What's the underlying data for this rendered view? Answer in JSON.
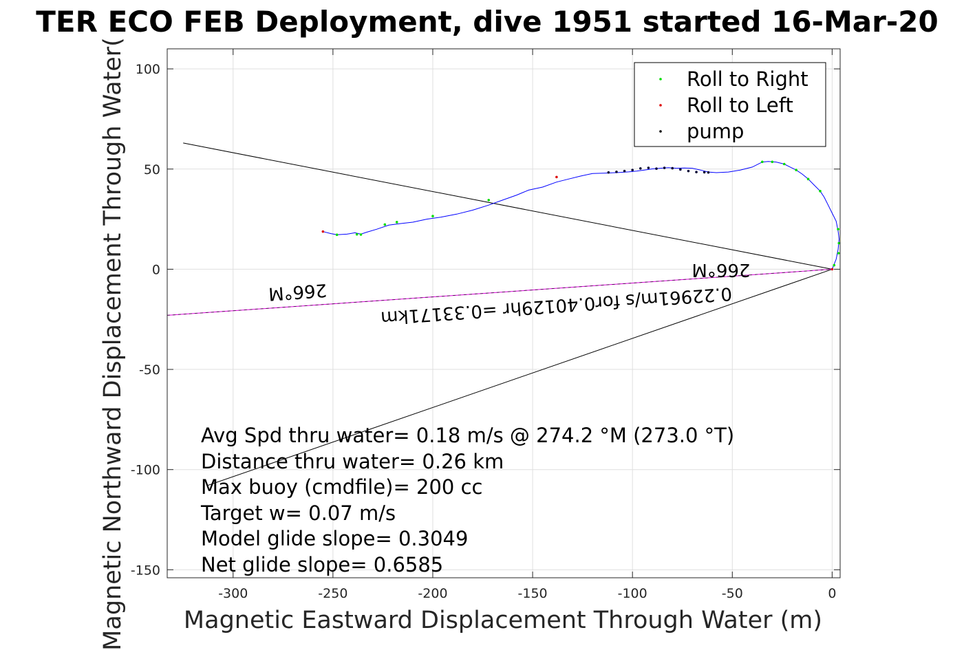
{
  "chart_data": {
    "type": "line",
    "title": "TER ECO FEB Deployment, dive 1951 started 16-Mar-20",
    "xlabel": "Magnetic Eastward Displacement Through Water (m)",
    "ylabel": "Magnetic Northward Displacement Through Water(",
    "xlim": [
      -333,
      4
    ],
    "ylim": [
      -154,
      110
    ],
    "x_ticks": [
      -300,
      -250,
      -200,
      -150,
      -100,
      -50,
      0
    ],
    "y_ticks": [
      100,
      50,
      0,
      -50,
      -100,
      -150
    ],
    "grid": true,
    "legend_position": "top-right",
    "legend": [
      {
        "label": "Roll to Right",
        "color": "#00dd00"
      },
      {
        "label": "Roll to Left",
        "color": "#dd0000"
      },
      {
        "label": "pump",
        "color": "#000000"
      }
    ],
    "series": [
      {
        "color": "#0000ff",
        "x": [
          0,
          2,
          3,
          3.5,
          3,
          2,
          0,
          -2,
          -4,
          -6,
          -9,
          -12,
          -15,
          -18,
          -21,
          -24,
          -28,
          -32,
          -35,
          -40,
          -46,
          -52,
          -58,
          -62,
          -66,
          -70,
          -74,
          -78,
          -82,
          -86,
          -90,
          -94,
          -98,
          -102,
          -108,
          -113,
          -120,
          -126,
          -132,
          -138,
          -145,
          -152,
          -158,
          -165,
          -172,
          -180,
          -188,
          -196,
          -203,
          -210,
          -216,
          -222,
          -228,
          -233,
          -236,
          -239,
          -243,
          -248,
          -251,
          -255
        ],
        "y": [
          0,
          5,
          10,
          15,
          19,
          24,
          28,
          32,
          36,
          39,
          42,
          45,
          47.5,
          49.5,
          51,
          52.5,
          53.5,
          53.8,
          53.5,
          51,
          49.5,
          48.5,
          48.2,
          48.5,
          49.5,
          50.4,
          50.5,
          50.4,
          50.7,
          50.4,
          50.1,
          49.5,
          49,
          48.6,
          48.2,
          48.0,
          47.8,
          46.5,
          45.0,
          43.5,
          41.0,
          39.5,
          37.0,
          34.5,
          32.0,
          29.5,
          27.5,
          26.0,
          25.0,
          23.5,
          22.8,
          22.0,
          20.0,
          18.5,
          17.5,
          18.2,
          17.5,
          17.2,
          17.8,
          18.8
        ]
      }
    ],
    "roll_right_points": [
      [
        3,
        20
      ],
      [
        3.4,
        13
      ],
      [
        3.2,
        8
      ],
      [
        1,
        2
      ],
      [
        -6,
        39
      ],
      [
        -12,
        45
      ],
      [
        -18,
        49.5
      ],
      [
        -24,
        52.5
      ],
      [
        -30,
        53.6
      ],
      [
        -35,
        53.6
      ],
      [
        -238,
        17.4
      ],
      [
        -236,
        17.3
      ],
      [
        -248,
        17.2
      ],
      [
        -224,
        22.3
      ],
      [
        -218,
        23.5
      ],
      [
        -200,
        26.5
      ],
      [
        -172,
        34.5
      ]
    ],
    "roll_left_points": [
      [
        -255,
        18.8
      ],
      [
        -138,
        46.0
      ],
      [
        0,
        0
      ]
    ],
    "pump_points": [
      [
        -112,
        48.3
      ],
      [
        -108,
        48.6
      ],
      [
        -104,
        49.0
      ],
      [
        -100,
        49.5
      ],
      [
        -96,
        50.3
      ],
      [
        -92,
        50.6
      ],
      [
        -88,
        50.2
      ],
      [
        -84,
        50.6
      ],
      [
        -80,
        50.4
      ],
      [
        -76,
        49.8
      ],
      [
        -72,
        49.0
      ],
      [
        -68,
        48.5
      ],
      [
        -64,
        48.4
      ],
      [
        -62,
        48.3
      ]
    ],
    "lines": [
      {
        "color": "#000000",
        "x": [
          -325,
          0
        ],
        "y": [
          63,
          0
        ]
      },
      {
        "color": "#000000",
        "x": [
          -313,
          0
        ],
        "y": [
          -108,
          0
        ]
      },
      {
        "color": "#dd00dd",
        "x": [
          -333,
          0
        ],
        "y": [
          -23,
          0
        ]
      }
    ],
    "annotations": {
      "heading_upper": "266°M",
      "heading_lower": "266°M",
      "current_text": "0.22961m/s for0.40129hr =0.33171km"
    },
    "stats": [
      "Avg Spd thru water=  0.18 m/s @ 274.2 °M (273.0 °T)",
      "Distance thru water=  0.26 km",
      "Max buoy (cmdfile)= 200 cc",
      "Target w= 0.07 m/s",
      "Model glide slope= 0.3049",
      "Net glide slope= 0.6585"
    ]
  }
}
